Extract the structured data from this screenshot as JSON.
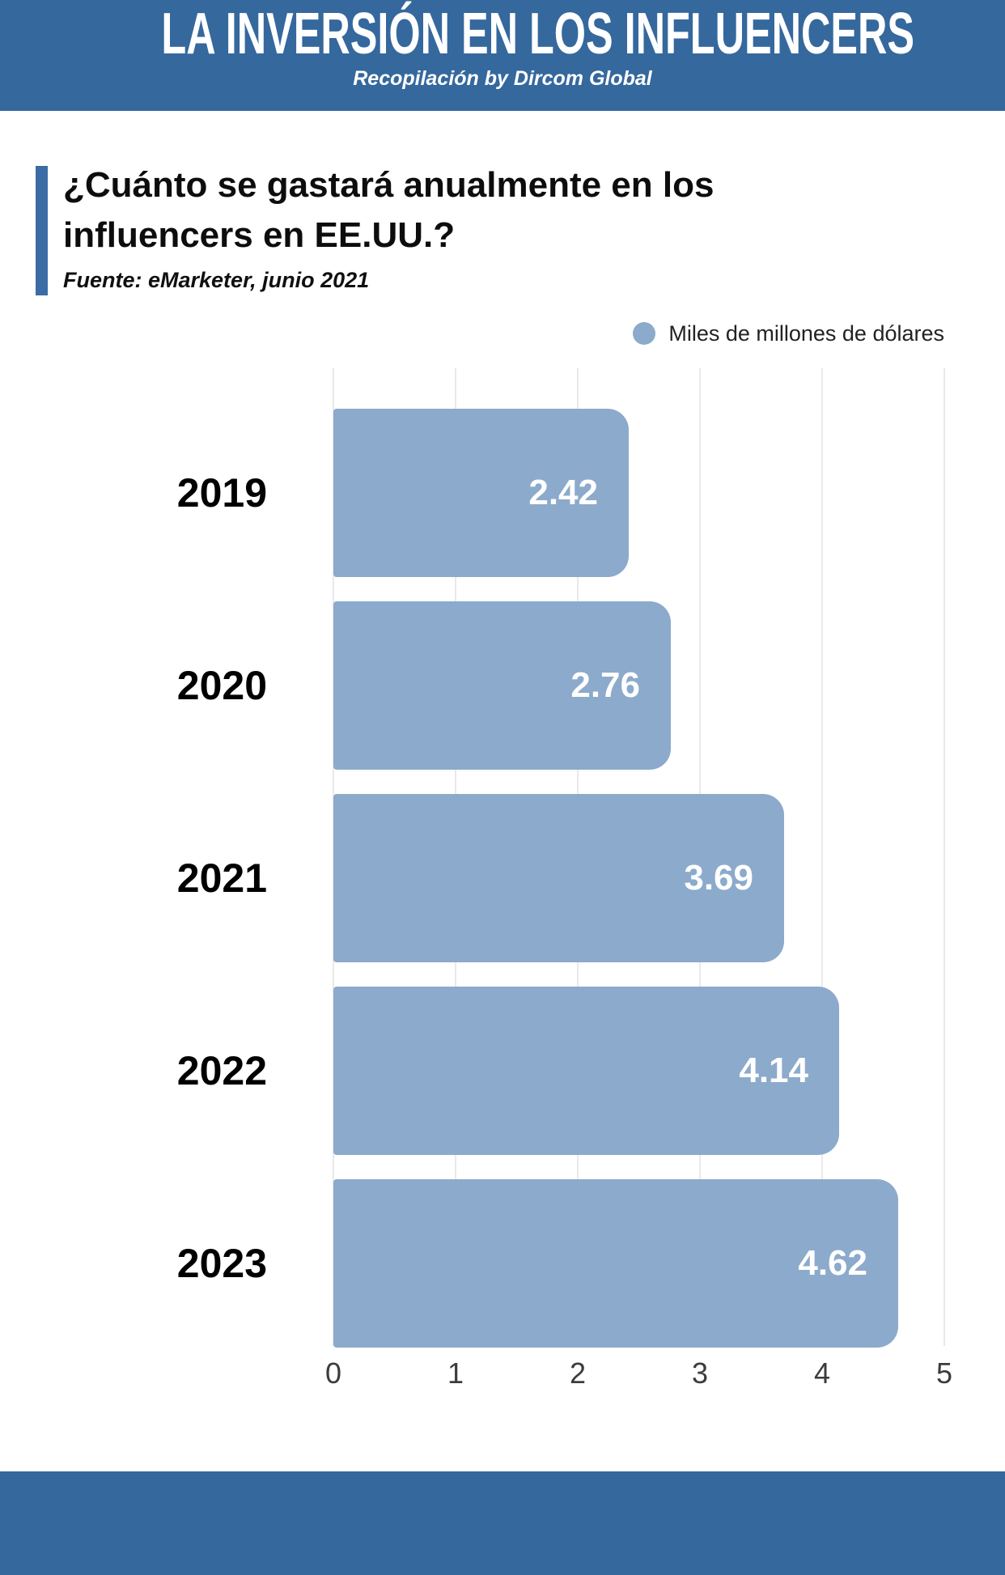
{
  "header": {
    "title": "LA INVERSIÓN EN LOS INFLUENCERS",
    "subtitle": "Recopilación by Dircom Global"
  },
  "question": {
    "title_line1": "¿Cuánto se gastará anualmente en los",
    "title_line2": "influencers en EE.UU.?",
    "source": "Fuente: eMarketer, junio 2021"
  },
  "legend": {
    "label": "Miles de millones de dólares",
    "marker": "circle"
  },
  "chart_data": {
    "type": "bar",
    "orientation": "horizontal",
    "title": "¿Cuánto se gastará anualmente en los influencers en EE.UU.?",
    "categories": [
      "2019",
      "2020",
      "2021",
      "2022",
      "2023"
    ],
    "values": [
      2.42,
      2.76,
      3.69,
      4.14,
      4.62
    ],
    "series_name": "Miles de millones de dólares",
    "xlabel": "",
    "ylabel": "",
    "xlim": [
      0,
      5
    ],
    "x_ticks": [
      0,
      1,
      2,
      3,
      4,
      5
    ],
    "grid": true,
    "legend_position": "top-right",
    "value_labels": "inside-end"
  },
  "colors": {
    "band_blue": "#35689D",
    "accent_blue": "#3B6CA6",
    "bar_fill": "#8CAACB",
    "value_text": "#ffffff",
    "gridline": "#e9e9e9"
  }
}
